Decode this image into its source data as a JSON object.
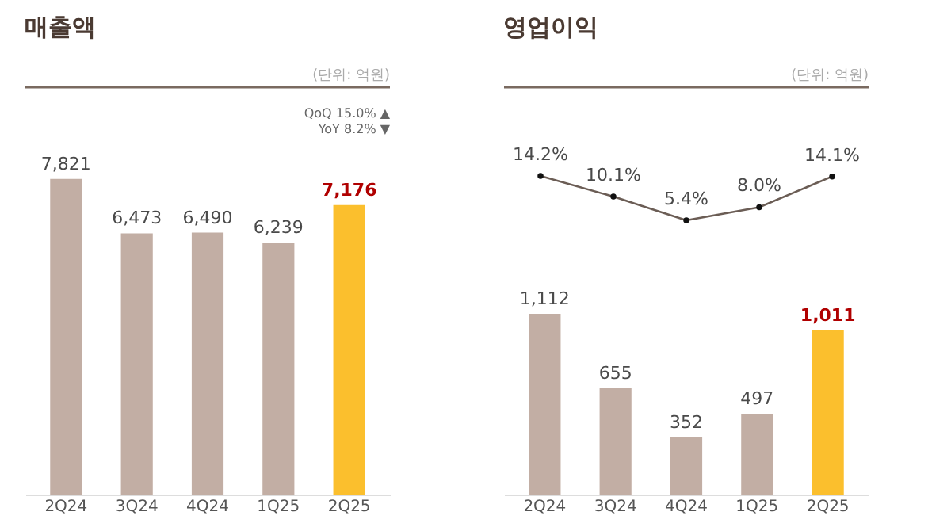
{
  "chart_data": [
    {
      "type": "bar",
      "title": "매출액",
      "annotations": [
        "(단위: 억원)",
        "QoQ 15.0% ▲",
        "YoY 8.2% ▼"
      ],
      "categories": [
        "2Q24",
        "3Q24",
        "4Q24",
        "1Q25",
        "2Q25"
      ],
      "values": [
        7821,
        6473,
        6490,
        6239,
        7176
      ],
      "value_labels": [
        "7,821",
        "6,473",
        "6,490",
        "6,239",
        "7,176"
      ],
      "colors": [
        "#c2aea4",
        "#c2aea4",
        "#c2aea4",
        "#c2aea4",
        "#fbbf2d"
      ],
      "tick_labels": "x",
      "grid": false
    },
    {
      "type": "line",
      "title": "영업이익",
      "annotations": [
        "(단위: 억원)"
      ],
      "categories": [
        null,
        null,
        null,
        null,
        null
      ],
      "series": [
        {
          "color": "#6b5d55",
          "values": [
            14.2,
            10.1,
            5.4,
            8.0,
            14.1
          ],
          "value_labels": [
            "14.2%",
            "10.1%",
            "5.4%",
            "8.0%",
            "14.1%"
          ]
        }
      ],
      "tick_labels": false,
      "grid": false,
      "marker": "circle"
    },
    {
      "type": "bar",
      "categories": [
        "2Q24",
        "3Q24",
        "4Q24",
        "1Q25",
        "2Q25"
      ],
      "values": [
        1112,
        655,
        352,
        497,
        1011
      ],
      "value_labels": [
        "1,112",
        "655",
        "352",
        "497",
        "1,011"
      ],
      "colors": [
        "#c2aea4",
        "#c2aea4",
        "#c2aea4",
        "#c2aea4",
        "#fbbf2d"
      ],
      "tick_labels": "x",
      "grid": false
    }
  ]
}
